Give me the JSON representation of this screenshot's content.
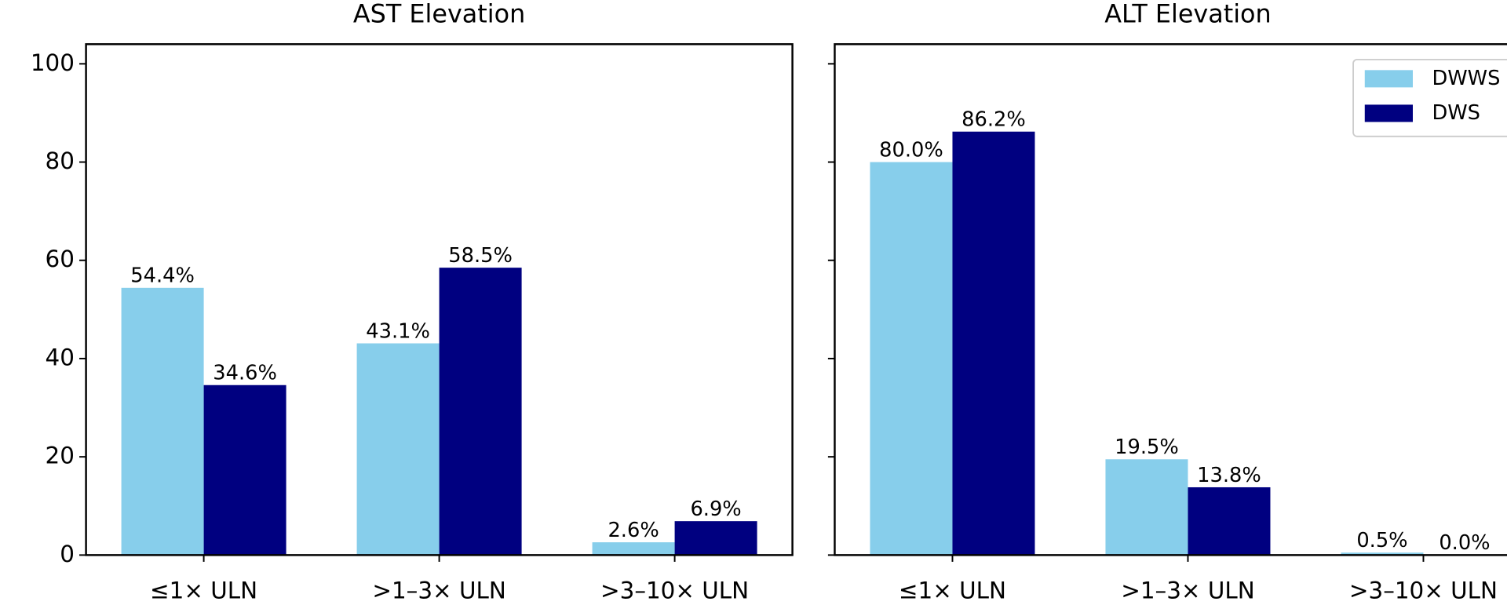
{
  "chart_data": [
    {
      "type": "bar",
      "title": "AST Elevation",
      "categories": [
        "≤1× ULN",
        ">1–3× ULN",
        ">3–10× ULN"
      ],
      "series": [
        {
          "color": "#87ceeb",
          "values": [
            54.4,
            43.1,
            2.6
          ],
          "value_labels": [
            "54.4%",
            "43.1%",
            "2.6%"
          ]
        },
        {
          "color": "#000080",
          "values": [
            34.6,
            58.5,
            6.9
          ],
          "value_labels": [
            "34.6%",
            "58.5%",
            "6.9%"
          ]
        }
      ],
      "ylim": [
        0,
        104
      ],
      "yticks": [
        0,
        20,
        40,
        60,
        80,
        100
      ]
    },
    {
      "type": "bar",
      "title": "ALT Elevation",
      "categories": [
        "≤1× ULN",
        ">1–3× ULN",
        ">3–10× ULN"
      ],
      "series": [
        {
          "name": "DWWS",
          "color": "#87ceeb",
          "values": [
            80.0,
            19.5,
            0.5
          ],
          "value_labels": [
            "80.0%",
            "19.5%",
            "0.5%"
          ]
        },
        {
          "name": "DWS",
          "color": "#000080",
          "values": [
            86.2,
            13.8,
            0.0
          ],
          "value_labels": [
            "86.2%",
            "13.8%",
            "0.0%"
          ]
        }
      ],
      "ylim": [
        0,
        104
      ],
      "legend": "upper right"
    }
  ]
}
